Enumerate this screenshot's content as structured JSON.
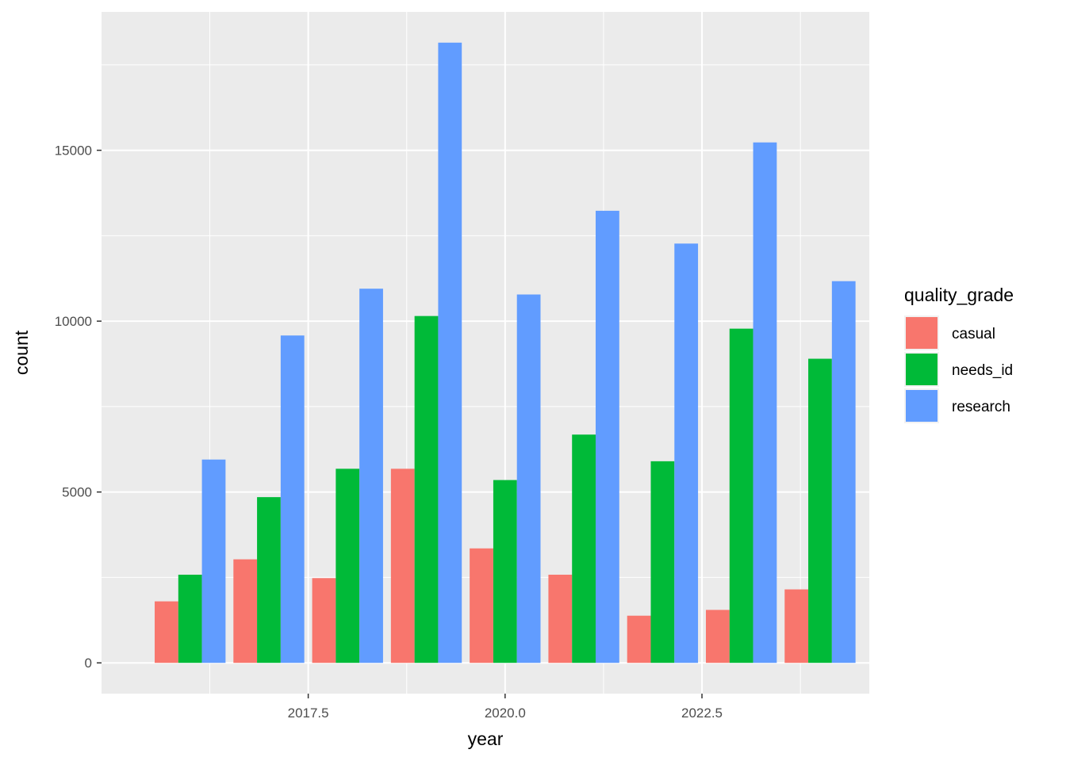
{
  "chart_data": {
    "type": "bar",
    "title": "",
    "xlabel": "year",
    "ylabel": "count",
    "x": [
      2016,
      2017,
      2018,
      2019,
      2020,
      2021,
      2022,
      2023,
      2024
    ],
    "series": [
      {
        "name": "casual",
        "color": "#F8766D",
        "values": [
          1800,
          3030,
          2480,
          5680,
          3350,
          2580,
          1380,
          1550,
          2150
        ]
      },
      {
        "name": "needs_id",
        "color": "#00BA38",
        "values": [
          2580,
          4850,
          5680,
          10150,
          5350,
          6680,
          5900,
          9780,
          8900
        ]
      },
      {
        "name": "research",
        "color": "#619CFF",
        "values": [
          5950,
          9580,
          10950,
          18150,
          10780,
          13230,
          12270,
          15230,
          11170
        ]
      }
    ],
    "xlim": [
      2014.875,
      2024.625
    ],
    "ylim": [
      -900,
      19050
    ],
    "x_ticks": [
      2017.5,
      2020.0,
      2022.5
    ],
    "x_tick_labels": [
      "2017.5",
      "2020.0",
      "2022.5"
    ],
    "y_ticks": [
      0,
      5000,
      10000,
      15000
    ],
    "y_tick_labels": [
      "0",
      "5000",
      "10000",
      "15000"
    ],
    "legend": {
      "title": "quality_grade",
      "position": "right"
    },
    "grid": true,
    "panel_background": "#EBEBEB",
    "grid_color": "#FFFFFF"
  }
}
